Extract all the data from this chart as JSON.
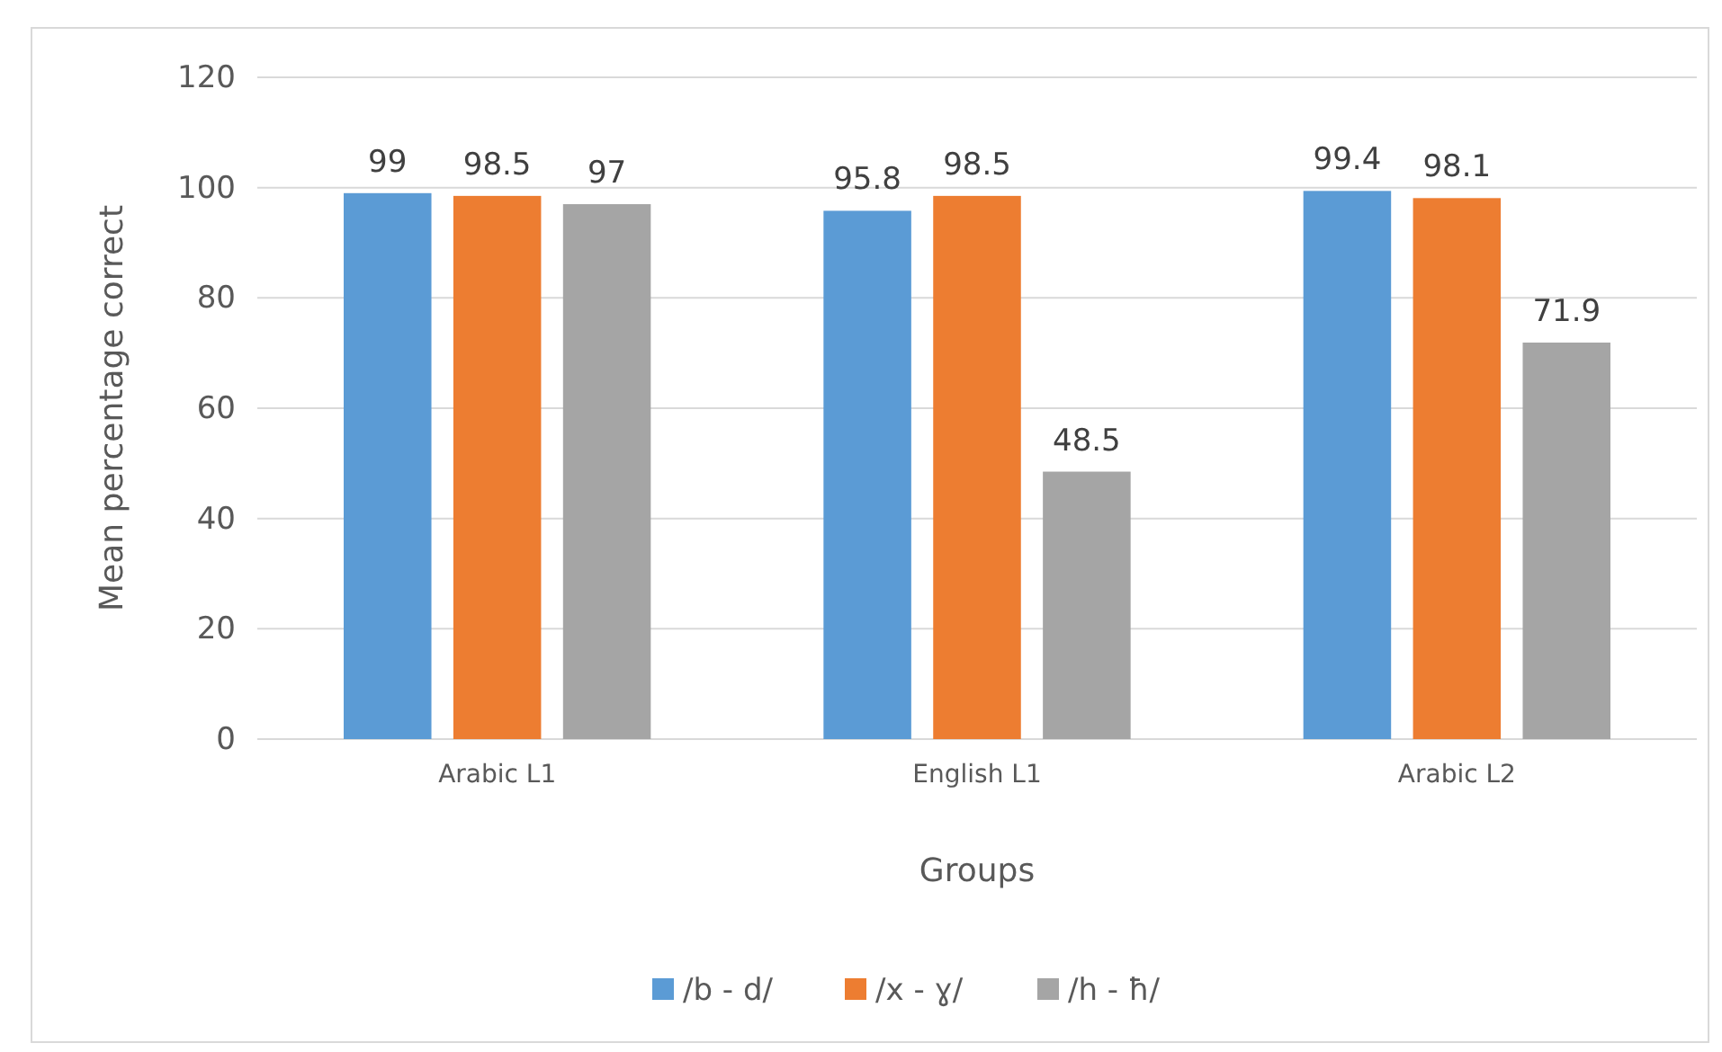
{
  "chart_data": {
    "type": "bar",
    "categories": [
      "Arabic L1",
      "English L1",
      "Arabic L2"
    ],
    "series": [
      {
        "name": "/b - d/",
        "color": "#5b9bd5",
        "values": [
          99,
          95.8,
          99.4
        ]
      },
      {
        "name": "/x - ɣ/",
        "color": "#ed7d31",
        "values": [
          98.5,
          98.5,
          98.1
        ]
      },
      {
        "name": "/h - ħ/",
        "color": "#a5a5a5",
        "values": [
          97,
          48.5,
          71.9
        ]
      }
    ],
    "xlabel": "Groups",
    "ylabel": "Mean percentage correct",
    "ylim": [
      0,
      120
    ],
    "yticks": [
      0,
      20,
      40,
      60,
      80,
      100,
      120
    ],
    "grid": "y",
    "legend": "bottom",
    "data_labels": true
  }
}
